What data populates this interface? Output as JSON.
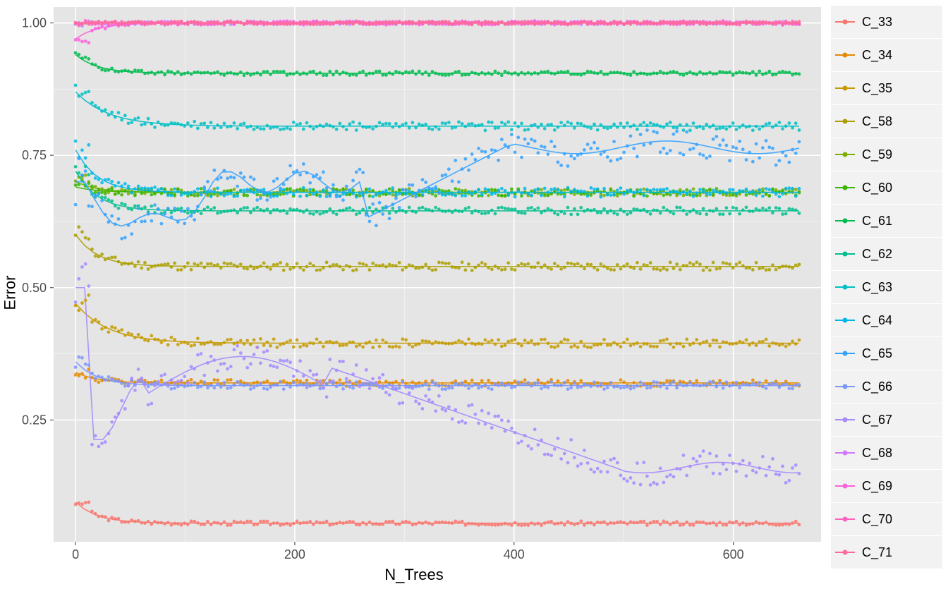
{
  "chart": {
    "type": "scatter+line",
    "background_color": "#ffffff",
    "panel_background": "#e5e5e5",
    "grid_major_color": "#ffffff",
    "grid_minor_color": "#f3f3f3",
    "xlabel": "N_Trees",
    "ylabel": "Error",
    "label_fontsize": 22,
    "tick_fontsize": 18,
    "tick_color": "#4d4d4d",
    "xlim": [
      -20,
      680
    ],
    "ylim": [
      0.02,
      1.03
    ],
    "xticks": [
      0,
      200,
      400,
      600
    ],
    "yticks": [
      0.25,
      0.5,
      0.75,
      1.0
    ],
    "point_radius": 2.4,
    "line_width": 1.6,
    "legend_fontsize": 18,
    "legend_item_bg": "#f2f2f2",
    "series": [
      {
        "name": "C_33",
        "color": "#f8766d",
        "level": 0.055,
        "jitter": 0.004,
        "start": 0.095,
        "smooth": "flat"
      },
      {
        "name": "C_34",
        "color": "#e38900",
        "level": 0.32,
        "jitter": 0.006,
        "start": 0.34,
        "smooth": "flat"
      },
      {
        "name": "C_35",
        "color": "#c49a00",
        "level": 0.395,
        "jitter": 0.008,
        "start": 0.47,
        "smooth": "decay"
      },
      {
        "name": "C_58",
        "color": "#aba000",
        "level": 0.54,
        "jitter": 0.008,
        "start": 0.6,
        "smooth": "flat"
      },
      {
        "name": "C_59",
        "color": "#7cae00",
        "level": 0.68,
        "jitter": 0.007,
        "start": 0.7,
        "smooth": "flat"
      },
      {
        "name": "C_60",
        "color": "#39b600",
        "level": 0.68,
        "jitter": 0.007,
        "start": 0.69,
        "smooth": "flat"
      },
      {
        "name": "C_61",
        "color": "#00bb4e",
        "level": 0.905,
        "jitter": 0.004,
        "start": 0.94,
        "smooth": "flat"
      },
      {
        "name": "C_62",
        "color": "#00bf8d",
        "level": 0.645,
        "jitter": 0.007,
        "start": 0.72,
        "smooth": "flat"
      },
      {
        "name": "C_63",
        "color": "#00bfc4",
        "level": 0.805,
        "jitter": 0.008,
        "start": 0.87,
        "smooth": "decay"
      },
      {
        "name": "C_64",
        "color": "#00b8e7",
        "level": 0.68,
        "jitter": 0.009,
        "start": 0.76,
        "smooth": "flat"
      },
      {
        "name": "C_65",
        "color": "#35a2ff",
        "level": 0.76,
        "jitter": 0.02,
        "start": 0.7,
        "smooth": "c65"
      },
      {
        "name": "C_66",
        "color": "#7997ff",
        "level": 0.315,
        "jitter": 0.007,
        "start": 0.36,
        "smooth": "flat"
      },
      {
        "name": "C_67",
        "color": "#a58aff",
        "level": 0.16,
        "jitter": 0.02,
        "start": 0.5,
        "smooth": "c67"
      },
      {
        "name": "C_68",
        "color": "#d277ff",
        "level": 1.0,
        "jitter": 0.003,
        "start": 1.0,
        "smooth": "flat"
      },
      {
        "name": "C_69",
        "color": "#fa62db",
        "level": 1.0,
        "jitter": 0.004,
        "start": 0.97,
        "smooth": "flat"
      },
      {
        "name": "C_70",
        "color": "#ff62bc",
        "level": 1.0,
        "jitter": 0.003,
        "start": 1.0,
        "smooth": "flat"
      },
      {
        "name": "C_71",
        "color": "#ff6a98",
        "level": 1.0,
        "jitter": 0.003,
        "start": 1.0,
        "smooth": "flat"
      }
    ],
    "x_series_max": 660,
    "x_label_texts": {
      "0": "0",
      "200": "200",
      "400": "400",
      "600": "600"
    },
    "y_label_texts": {
      "0.25": "0.25",
      "0.5": "0.50",
      "0.75": "0.75",
      "1": "1.00"
    }
  }
}
